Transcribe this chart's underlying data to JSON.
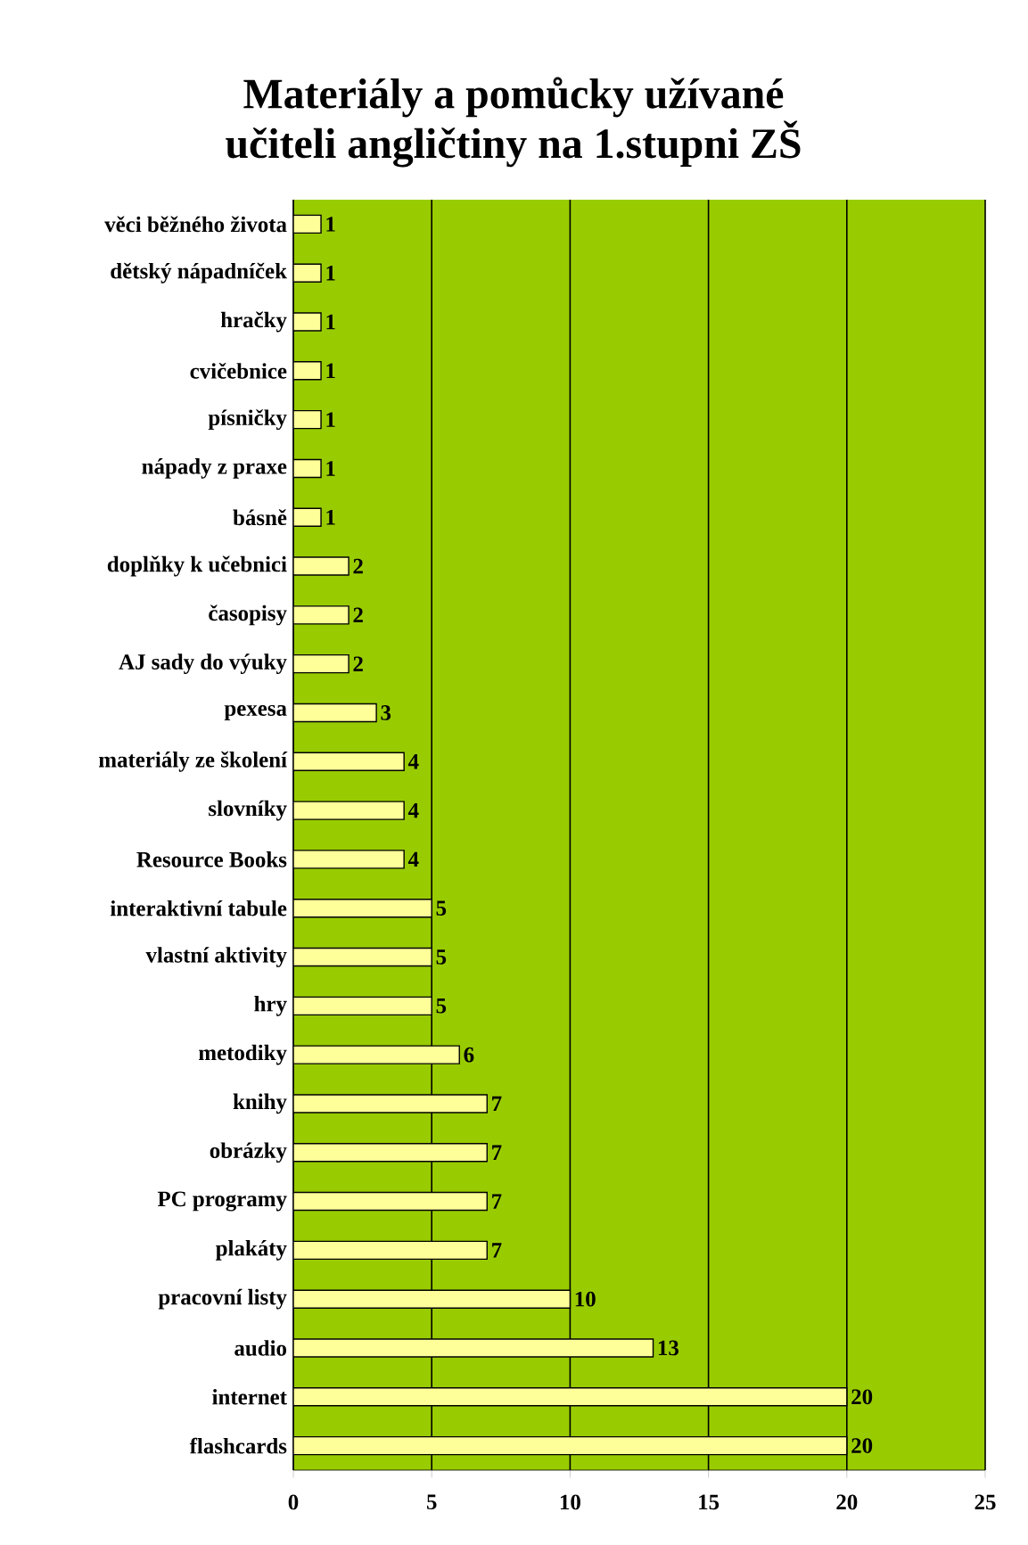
{
  "chart_data": {
    "type": "bar",
    "orientation": "horizontal",
    "title": "Materiály a pomůcky užívané\nučiteli angličtiny na 1.stupni ZŠ",
    "categories": [
      "věci běžného života",
      "dětský nápadníček",
      "hračky",
      "cvičebnice",
      "písničky",
      "nápady z praxe",
      "básně",
      "doplňky k učebnici",
      "časopisy",
      "AJ sady do výuky",
      "pexesa",
      "materiály ze školení",
      "slovníky",
      "Resource Books",
      "interaktivní tabule",
      "vlastní aktivity",
      "hry",
      "metodiky",
      "knihy",
      "obrázky",
      "PC programy",
      "plakáty",
      "pracovní listy",
      "audio",
      "internet",
      "flashcards"
    ],
    "values": [
      1,
      1,
      1,
      1,
      1,
      1,
      1,
      2,
      2,
      2,
      3,
      4,
      4,
      4,
      5,
      5,
      5,
      6,
      7,
      7,
      7,
      7,
      10,
      13,
      20,
      20
    ],
    "color": "#ffff99",
    "xlim": [
      0,
      25
    ],
    "xticks": [
      0,
      5,
      10,
      15,
      20,
      25
    ],
    "grid": "x",
    "data_labels": true
  }
}
